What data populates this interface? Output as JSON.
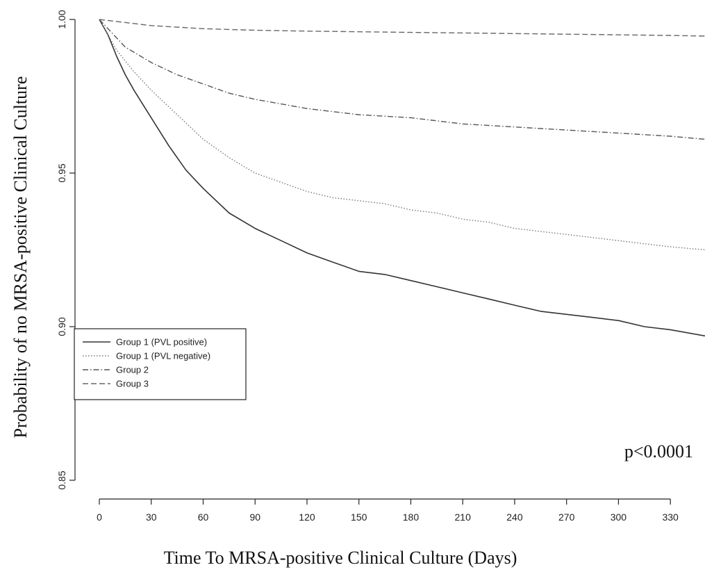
{
  "chart_data": {
    "type": "line",
    "title": "",
    "xlabel": "Time To MRSA-positive Clinical Culture (Days)",
    "ylabel": "Probability of no MRSA-positive Clinical Culture",
    "xlim": [
      0,
      350
    ],
    "ylim": [
      0.85,
      1.0
    ],
    "xticks": [
      0,
      30,
      60,
      90,
      120,
      150,
      180,
      210,
      240,
      270,
      300,
      330
    ],
    "yticks": [
      0.85,
      0.9,
      0.95,
      1.0
    ],
    "ytick_labels": [
      "0.85",
      "0.90",
      "0.95",
      "1.00"
    ],
    "grid": false,
    "legend_position": "middle-left",
    "annotation": "p<0.0001",
    "series": [
      {
        "name": "Group 1 (PVL positive)",
        "style": "solid",
        "color": "#333333",
        "x": [
          0,
          5,
          10,
          15,
          20,
          30,
          40,
          50,
          60,
          75,
          90,
          105,
          120,
          135,
          150,
          165,
          180,
          195,
          210,
          225,
          240,
          255,
          270,
          285,
          300,
          315,
          330,
          350
        ],
        "y": [
          1.0,
          0.995,
          0.988,
          0.982,
          0.977,
          0.968,
          0.959,
          0.951,
          0.945,
          0.937,
          0.932,
          0.928,
          0.924,
          0.921,
          0.918,
          0.917,
          0.915,
          0.913,
          0.911,
          0.909,
          0.907,
          0.905,
          0.904,
          0.903,
          0.902,
          0.9,
          0.899,
          0.897
        ]
      },
      {
        "name": "Group 1 (PVL negative)",
        "style": "dotted",
        "color": "#777777",
        "x": [
          0,
          10,
          20,
          30,
          45,
          60,
          75,
          90,
          105,
          120,
          135,
          150,
          165,
          180,
          195,
          210,
          225,
          240,
          255,
          270,
          285,
          300,
          315,
          330,
          350
        ],
        "y": [
          1.0,
          0.99,
          0.983,
          0.977,
          0.969,
          0.961,
          0.955,
          0.95,
          0.947,
          0.944,
          0.942,
          0.941,
          0.94,
          0.938,
          0.937,
          0.935,
          0.934,
          0.932,
          0.931,
          0.93,
          0.929,
          0.928,
          0.927,
          0.926,
          0.925
        ]
      },
      {
        "name": "Group 2",
        "style": "dot-dash",
        "color": "#555555",
        "x": [
          0,
          15,
          30,
          45,
          60,
          75,
          90,
          120,
          150,
          180,
          210,
          240,
          270,
          300,
          330,
          350
        ],
        "y": [
          1.0,
          0.991,
          0.986,
          0.982,
          0.979,
          0.976,
          0.974,
          0.971,
          0.969,
          0.968,
          0.966,
          0.965,
          0.964,
          0.963,
          0.962,
          0.961
        ]
      },
      {
        "name": "Group 3",
        "style": "dashed",
        "color": "#666666",
        "x": [
          0,
          30,
          60,
          90,
          120,
          150,
          180,
          210,
          240,
          270,
          300,
          330,
          350
        ],
        "y": [
          1.0,
          0.998,
          0.997,
          0.9965,
          0.9962,
          0.996,
          0.9958,
          0.9956,
          0.9954,
          0.9952,
          0.995,
          0.9948,
          0.9946
        ]
      }
    ]
  }
}
